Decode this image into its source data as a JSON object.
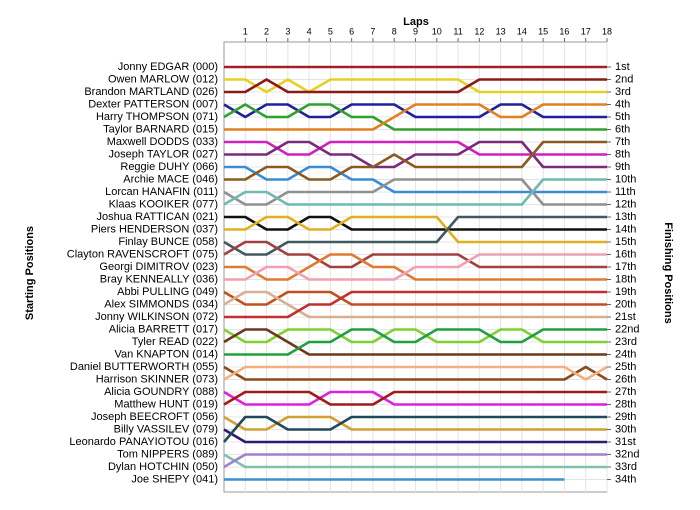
{
  "chart_data": {
    "type": "line",
    "x_label": "Laps",
    "y_label": "Starting Positions",
    "y2_label": "Finishing Positions",
    "x": [
      0,
      1,
      2,
      3,
      4,
      5,
      6,
      7,
      8,
      9,
      10,
      11,
      12,
      13,
      14,
      15,
      16,
      17,
      18
    ],
    "xlim": [
      0,
      18
    ],
    "xticks": [
      1,
      2,
      3,
      4,
      5,
      6,
      7,
      8,
      9,
      10,
      11,
      12,
      13,
      14,
      15,
      16,
      17,
      18
    ],
    "ylim": [
      35,
      -1
    ],
    "grid": true,
    "yticks": [
      {
        "value": 1,
        "label": "1st"
      },
      {
        "value": 2,
        "label": "2nd"
      },
      {
        "value": 3,
        "label": "3rd"
      },
      {
        "value": 4,
        "label": "4th"
      },
      {
        "value": 5,
        "label": "5th"
      },
      {
        "value": 6,
        "label": "6th"
      },
      {
        "value": 7,
        "label": "7th"
      },
      {
        "value": 8,
        "label": "8th"
      },
      {
        "value": 9,
        "label": "9th"
      },
      {
        "value": 10,
        "label": "10th"
      },
      {
        "value": 11,
        "label": "11th"
      },
      {
        "value": 12,
        "label": "12th"
      },
      {
        "value": 13,
        "label": "13th"
      },
      {
        "value": 14,
        "label": "14th"
      },
      {
        "value": 15,
        "label": "15th"
      },
      {
        "value": 16,
        "label": "16th"
      },
      {
        "value": 17,
        "label": "17th"
      },
      {
        "value": 18,
        "label": "18th"
      },
      {
        "value": 19,
        "label": "19th"
      },
      {
        "value": 20,
        "label": "20th"
      },
      {
        "value": 21,
        "label": "21st"
      },
      {
        "value": 22,
        "label": "22nd"
      },
      {
        "value": 23,
        "label": "23rd"
      },
      {
        "value": 24,
        "label": "24th"
      },
      {
        "value": 25,
        "label": "25th"
      },
      {
        "value": 26,
        "label": "26th"
      },
      {
        "value": 27,
        "label": "27th"
      },
      {
        "value": 28,
        "label": "28th"
      },
      {
        "value": 29,
        "label": "29th"
      },
      {
        "value": 30,
        "label": "30th"
      },
      {
        "value": 31,
        "label": "31st"
      },
      {
        "value": 32,
        "label": "32nd"
      },
      {
        "value": 33,
        "label": "33rd"
      },
      {
        "value": 34,
        "label": "34th"
      }
    ],
    "series": [
      {
        "name": "Jonny EDGAR (000)",
        "color": "#a0202a",
        "values": [
          1,
          1,
          1,
          1,
          1,
          1,
          1,
          1,
          1,
          1,
          1,
          1,
          1,
          1,
          1,
          1,
          1,
          1,
          1
        ]
      },
      {
        "name": "Owen MARLOW (012)",
        "color": "#e8d020",
        "values": [
          2,
          2,
          3,
          2,
          3,
          2,
          2,
          2,
          2,
          2,
          2,
          2,
          3,
          3,
          3,
          3,
          3,
          3,
          3
        ]
      },
      {
        "name": "Brandon MARTLAND (026)",
        "color": "#8a1a1a",
        "values": [
          3,
          3,
          2,
          3,
          3,
          3,
          3,
          3,
          3,
          3,
          3,
          3,
          2,
          2,
          2,
          2,
          2,
          2,
          2
        ]
      },
      {
        "name": "Dexter PATTERSON (007)",
        "color": "#20209a",
        "values": [
          4,
          5,
          4,
          4,
          5,
          5,
          4,
          4,
          4,
          5,
          5,
          5,
          5,
          4,
          4,
          5,
          5,
          5,
          5
        ]
      },
      {
        "name": "Harry THOMPSON (071)",
        "color": "#30a030",
        "values": [
          5,
          4,
          5,
          5,
          4,
          4,
          5,
          5,
          6,
          6,
          6,
          6,
          6,
          6,
          6,
          6,
          6,
          6,
          6
        ]
      },
      {
        "name": "Taylor BARNARD (015)",
        "color": "#e08020",
        "values": [
          6,
          6,
          6,
          6,
          6,
          6,
          6,
          6,
          5,
          4,
          4,
          4,
          4,
          5,
          5,
          4,
          4,
          4,
          4
        ]
      },
      {
        "name": "Maxwell DODDS (033)",
        "color": "#d020c0",
        "values": [
          7,
          7,
          7,
          8,
          8,
          7,
          7,
          7,
          7,
          7,
          7,
          7,
          8,
          8,
          8,
          8,
          8,
          8,
          8
        ]
      },
      {
        "name": "Joseph TAYLOR (027)",
        "color": "#7a2a7a",
        "values": [
          8,
          8,
          8,
          7,
          7,
          8,
          8,
          9,
          9,
          8,
          8,
          8,
          7,
          7,
          7,
          9,
          9,
          9,
          9
        ]
      },
      {
        "name": "Reggie DUHY (066)",
        "color": "#3a8ad8",
        "values": [
          9,
          9,
          10,
          10,
          9,
          9,
          10,
          10,
          11,
          11,
          11,
          11,
          11,
          11,
          11,
          11,
          11,
          11,
          11
        ]
      },
      {
        "name": "Archie MACE (046)",
        "color": "#8a5a20",
        "values": [
          10,
          10,
          9,
          9,
          10,
          10,
          9,
          9,
          8,
          9,
          9,
          9,
          9,
          9,
          9,
          7,
          7,
          7,
          7
        ]
      },
      {
        "name": "Lorcan HANAFIN (011)",
        "color": "#909090",
        "values": [
          11,
          12,
          12,
          11,
          11,
          11,
          11,
          11,
          10,
          10,
          10,
          10,
          10,
          10,
          10,
          12,
          12,
          12,
          12
        ]
      },
      {
        "name": "Klaas KOOIKER (077)",
        "color": "#70b8b0",
        "values": [
          12,
          11,
          11,
          12,
          12,
          12,
          12,
          12,
          12,
          12,
          12,
          12,
          12,
          12,
          12,
          10,
          10,
          10,
          10
        ]
      },
      {
        "name": "Joshua RATTICAN (021)",
        "color": "#101010",
        "values": [
          13,
          13,
          14,
          14,
          13,
          13,
          14,
          14,
          14,
          14,
          14,
          14,
          14,
          14,
          14,
          14,
          14,
          14,
          14
        ]
      },
      {
        "name": "Piers HENDERSON (037)",
        "color": "#e0b020",
        "values": [
          14,
          14,
          13,
          13,
          14,
          14,
          13,
          13,
          13,
          13,
          13,
          15,
          15,
          15,
          15,
          15,
          15,
          15,
          15
        ]
      },
      {
        "name": "Finlay BUNCE (058)",
        "color": "#405a60",
        "values": [
          15,
          16,
          16,
          15,
          15,
          15,
          15,
          15,
          15,
          15,
          15,
          13,
          13,
          13,
          13,
          13,
          13,
          13,
          13
        ]
      },
      {
        "name": "Clayton RAVENSCROFT (075)",
        "color": "#a04040",
        "values": [
          16,
          15,
          15,
          16,
          16,
          17,
          17,
          16,
          16,
          16,
          16,
          16,
          17,
          17,
          17,
          17,
          17,
          17,
          17
        ]
      },
      {
        "name": "Georgi DIMITROV (023)",
        "color": "#e07a30",
        "values": [
          17,
          17,
          18,
          18,
          17,
          16,
          16,
          17,
          17,
          18,
          18,
          18,
          18,
          18,
          18,
          18,
          18,
          18,
          18
        ]
      },
      {
        "name": "Bray KENNEALLY (036)",
        "color": "#f0a0b0",
        "values": [
          18,
          18,
          17,
          17,
          18,
          18,
          18,
          18,
          18,
          17,
          17,
          17,
          16,
          16,
          16,
          16,
          16,
          16,
          16
        ]
      },
      {
        "name": "Abbi PULLING (049)",
        "color": "#c05020",
        "values": [
          19,
          20,
          20,
          19,
          19,
          19,
          20,
          20,
          20,
          20,
          20,
          20,
          20,
          20,
          20,
          20,
          20,
          20,
          20
        ]
      },
      {
        "name": "Alex SIMMONDS (034)",
        "color": "#d8b090",
        "values": [
          20,
          19,
          19,
          20,
          21,
          21,
          21,
          21,
          21,
          21,
          21,
          21,
          21,
          21,
          21,
          21,
          21,
          21,
          21
        ]
      },
      {
        "name": "Jonny WILKINSON (072)",
        "color": "#c03030",
        "values": [
          21,
          21,
          21,
          21,
          20,
          20,
          19,
          19,
          19,
          19,
          19,
          19,
          19,
          19,
          19,
          19,
          19,
          19,
          19
        ]
      },
      {
        "name": "Alicia BARRETT (017)",
        "color": "#80d030",
        "values": [
          22,
          23,
          23,
          22,
          22,
          22,
          23,
          23,
          22,
          22,
          23,
          23,
          23,
          22,
          22,
          23,
          23,
          23,
          23
        ]
      },
      {
        "name": "Tyler READ (022)",
        "color": "#6a3a1a",
        "values": [
          23,
          22,
          22,
          23,
          24,
          24,
          24,
          24,
          24,
          24,
          24,
          24,
          24,
          24,
          24,
          24,
          24,
          24,
          24
        ]
      },
      {
        "name": "Van KNAPTON (014)",
        "color": "#20a040",
        "values": [
          24,
          24,
          24,
          24,
          23,
          23,
          22,
          22,
          23,
          23,
          22,
          22,
          22,
          23,
          23,
          22,
          22,
          22,
          22
        ]
      },
      {
        "name": "Daniel BUTTERWORTH (055)",
        "color": "#8a4a1a",
        "values": [
          25,
          26,
          26,
          26,
          26,
          26,
          26,
          26,
          26,
          26,
          26,
          26,
          26,
          26,
          26,
          26,
          26,
          25,
          26
        ]
      },
      {
        "name": "Harrison SKINNER (073)",
        "color": "#f0b080",
        "values": [
          26,
          25,
          25,
          25,
          25,
          25,
          25,
          25,
          25,
          25,
          25,
          25,
          25,
          25,
          25,
          25,
          25,
          26,
          25
        ]
      },
      {
        "name": "Alicia GOUNDRY (088)",
        "color": "#e020e0",
        "values": [
          27,
          28,
          28,
          28,
          28,
          27,
          27,
          27,
          28,
          28,
          28,
          28,
          28,
          28,
          28,
          28,
          28,
          28,
          28
        ]
      },
      {
        "name": "Matthew HUNT (019)",
        "color": "#a01a1a",
        "values": [
          28,
          27,
          27,
          27,
          27,
          28,
          28,
          28,
          27,
          27,
          27,
          27,
          27,
          27,
          27,
          27,
          27,
          27,
          27
        ]
      },
      {
        "name": "Joseph BEECROFT (056)",
        "color": "#d0a030",
        "values": [
          29,
          30,
          30,
          29,
          29,
          29,
          30,
          30,
          30,
          30,
          30,
          30,
          30,
          30,
          30,
          30,
          30,
          30,
          30
        ]
      },
      {
        "name": "Billy VASSILEV (079)",
        "color": "#301a70",
        "values": [
          30,
          31,
          31,
          31,
          31,
          31,
          31,
          31,
          31,
          31,
          31,
          31,
          31,
          31,
          31,
          31,
          31,
          31,
          31
        ]
      },
      {
        "name": "Leonardo PANAYIOTOU (016)",
        "color": "#204a5a",
        "values": [
          31,
          29,
          29,
          30,
          30,
          30,
          29,
          29,
          29,
          29,
          29,
          29,
          29,
          29,
          29,
          29,
          29,
          29,
          29
        ]
      },
      {
        "name": "Tom NIPPERS (089)",
        "color": "#80c0b0",
        "values": [
          32,
          33,
          33,
          33,
          33,
          33,
          33,
          33,
          33,
          33,
          33,
          33,
          33,
          33,
          33,
          33,
          33,
          33,
          33
        ]
      },
      {
        "name": "Dylan HOTCHIN (050)",
        "color": "#a080d0",
        "values": [
          33,
          32,
          32,
          32,
          32,
          32,
          32,
          32,
          32,
          32,
          32,
          32,
          32,
          32,
          32,
          32,
          32,
          32,
          32
        ]
      },
      {
        "name": "Joe SHEPY (041)",
        "color": "#3a90d0",
        "values": [
          34,
          34,
          34,
          34,
          34,
          34,
          34,
          34,
          34,
          34,
          34,
          34,
          34,
          34,
          34,
          34,
          34,
          null,
          null
        ]
      }
    ]
  }
}
